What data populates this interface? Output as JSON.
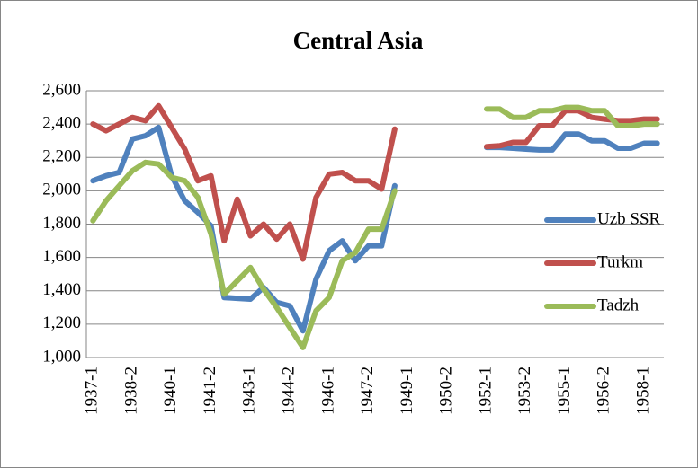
{
  "chart_data": {
    "type": "line",
    "title": "Central Asia",
    "categories": [
      "1937-1",
      null,
      null,
      "1938-2",
      null,
      null,
      "1940-1",
      null,
      null,
      "1941-2",
      null,
      null,
      "1943-1",
      null,
      null,
      "1944-2",
      null,
      null,
      "1946-1",
      null,
      null,
      "1947-2",
      null,
      null,
      "1949-1",
      null,
      null,
      "1950-2",
      null,
      null,
      "1952-1",
      null,
      null,
      "1953-2",
      null,
      null,
      "1955-1",
      null,
      null,
      "1956-2",
      null,
      null,
      "1958-1",
      null
    ],
    "series": [
      {
        "name": "Uzb SSR",
        "color": "#4f81bd",
        "values": [
          2060,
          2090,
          2110,
          2310,
          2330,
          2380,
          2090,
          1940,
          1870,
          1790,
          1360,
          1355,
          1350,
          1420,
          1330,
          1310,
          1160,
          1470,
          1640,
          1700,
          1580,
          1670,
          1670,
          2030,
          null,
          null,
          null,
          null,
          null,
          null,
          2260,
          2260,
          2255,
          2250,
          2245,
          2245,
          2340,
          2340,
          2300,
          2300,
          2255,
          2255,
          2285,
          2285
        ]
      },
      {
        "name": "Turkm",
        "color": "#c0504d",
        "values": [
          2400,
          2360,
          2400,
          2440,
          2420,
          2510,
          2380,
          2250,
          2060,
          2090,
          1700,
          1950,
          1730,
          1800,
          1710,
          1800,
          1590,
          1960,
          2100,
          2110,
          2060,
          2060,
          2010,
          2370,
          null,
          null,
          null,
          null,
          null,
          null,
          2265,
          2270,
          2290,
          2290,
          2390,
          2390,
          2480,
          2480,
          2440,
          2430,
          2420,
          2420,
          2430,
          2430
        ]
      },
      {
        "name": "Tadzh",
        "color": "#9bbb59",
        "values": [
          1820,
          1940,
          2030,
          2120,
          2170,
          2160,
          2080,
          2060,
          1960,
          1740,
          1380,
          1460,
          1540,
          1410,
          1300,
          1180,
          1060,
          1280,
          1360,
          1580,
          1630,
          1770,
          1770,
          2000,
          null,
          null,
          null,
          null,
          null,
          null,
          2490,
          2490,
          2440,
          2440,
          2480,
          2480,
          2500,
          2500,
          2480,
          2480,
          2390,
          2390,
          2400,
          2400
        ]
      }
    ],
    "ylim": [
      1000,
      2600
    ],
    "yticks": [
      {
        "value": 1000,
        "label": "1,000"
      },
      {
        "value": 1200,
        "label": "1,200"
      },
      {
        "value": 1400,
        "label": "1,400"
      },
      {
        "value": 1600,
        "label": "1,600"
      },
      {
        "value": 1800,
        "label": "1,800"
      },
      {
        "value": 2000,
        "label": "2,000"
      },
      {
        "value": 2200,
        "label": "2,200"
      },
      {
        "value": 2400,
        "label": "2,400"
      },
      {
        "value": 2600,
        "label": "2,600"
      }
    ],
    "grid": true,
    "legend": "right"
  }
}
